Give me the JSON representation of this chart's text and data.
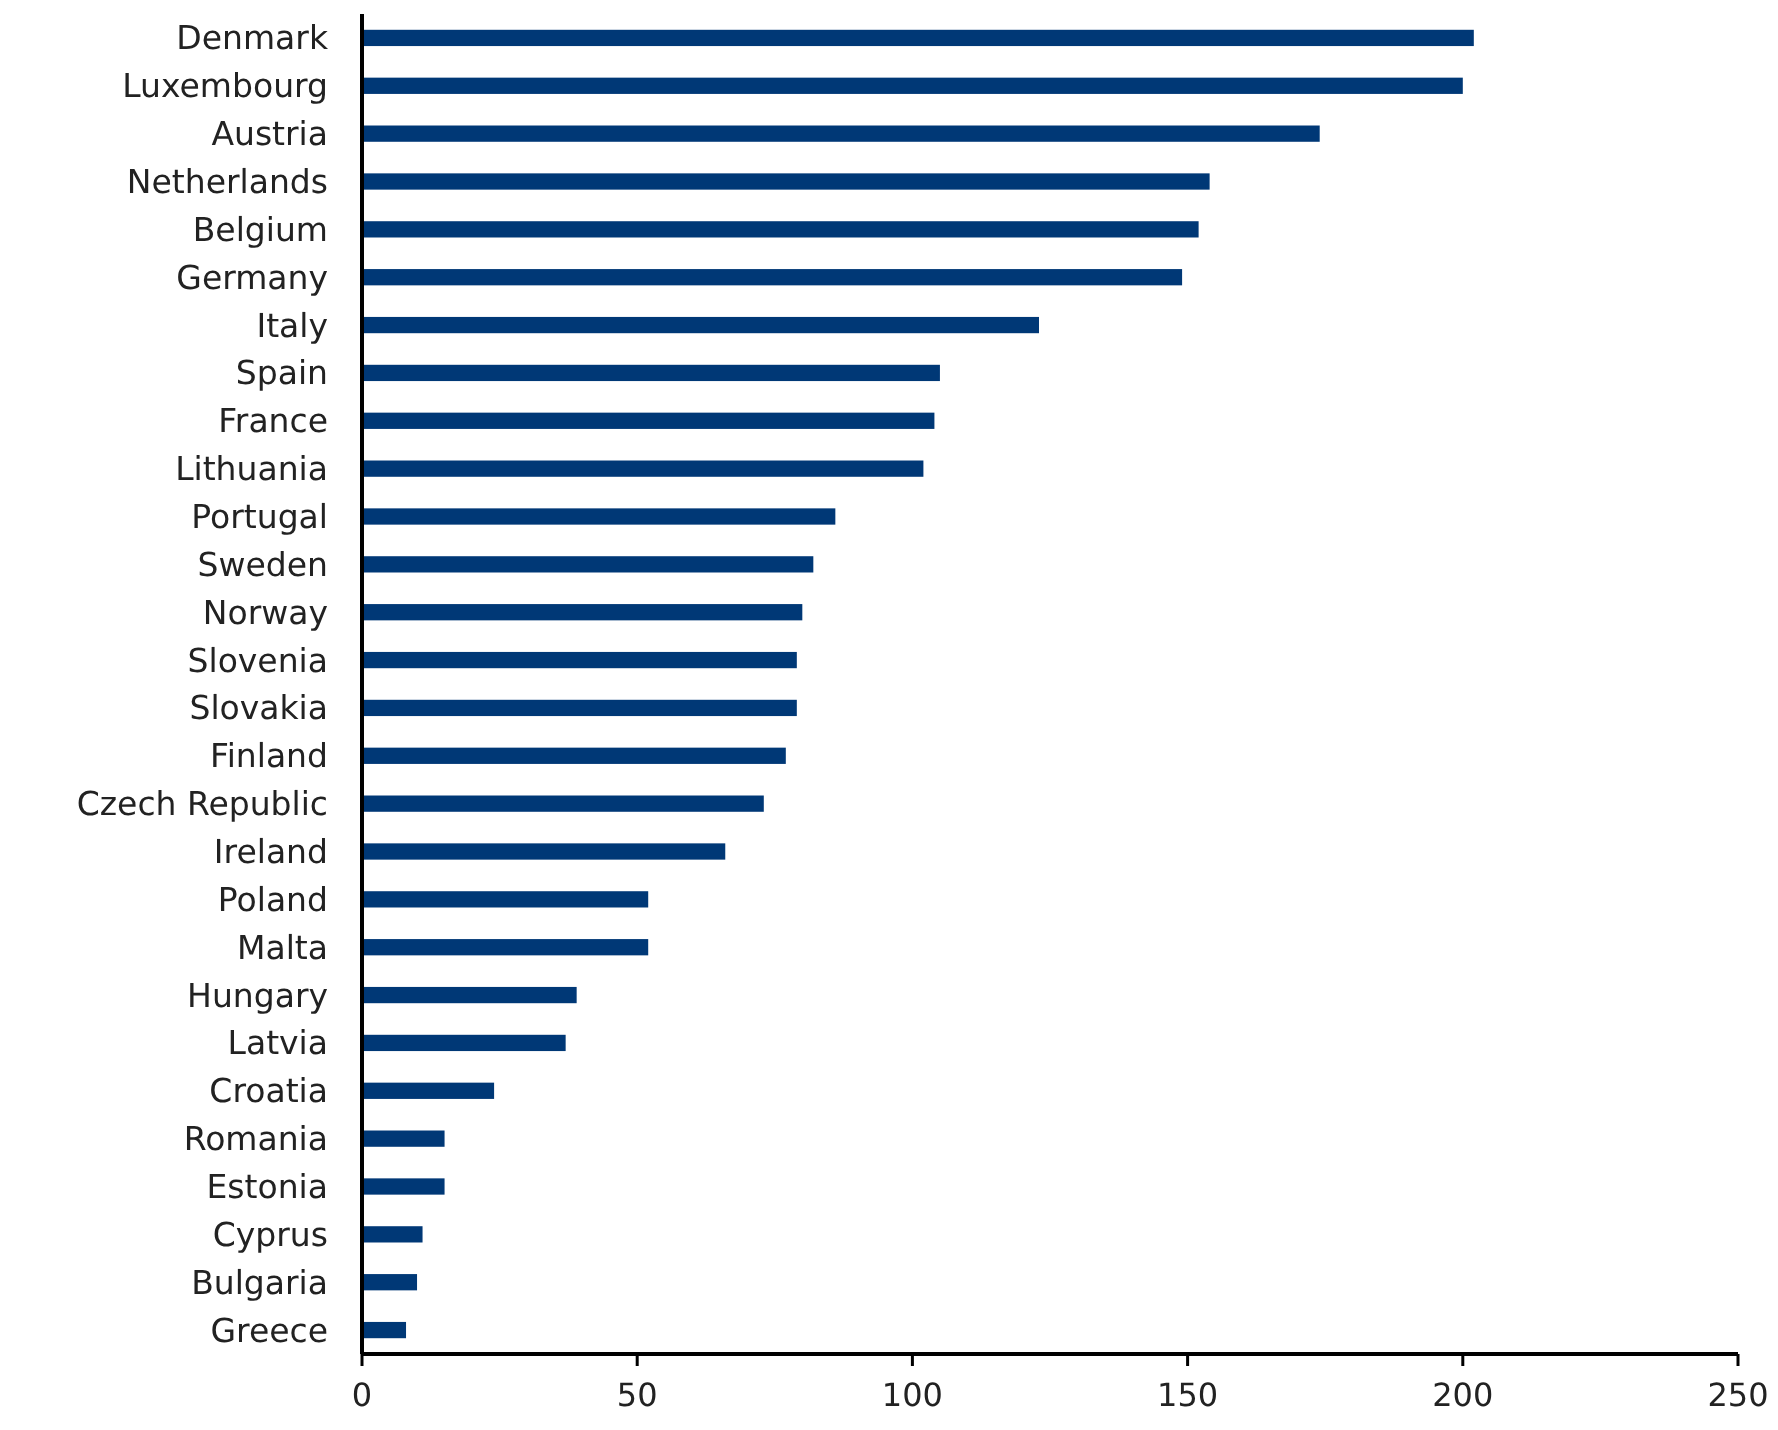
{
  "chart_data": {
    "type": "bar",
    "orientation": "horizontal",
    "categories": [
      "Denmark",
      "Luxembourg",
      "Austria",
      "Netherlands",
      "Belgium",
      "Germany",
      "Italy",
      "Spain",
      "France",
      "Lithuania",
      "Portugal",
      "Sweden",
      "Norway",
      "Slovenia",
      "Slovakia",
      "Finland",
      "Czech Republic",
      "Ireland",
      "Poland",
      "Malta",
      "Hungary",
      "Latvia",
      "Croatia",
      "Romania",
      "Estonia",
      "Cyprus",
      "Bulgaria",
      "Greece"
    ],
    "values": [
      202,
      200,
      174,
      154,
      152,
      149,
      123,
      105,
      104,
      102,
      86,
      82,
      80,
      79,
      79,
      77,
      73,
      66,
      52,
      52,
      39,
      37,
      24,
      15,
      15,
      11,
      10,
      8
    ],
    "color": "#003876",
    "xlim": [
      0,
      250
    ],
    "xticks": [
      0,
      50,
      100,
      150,
      200,
      250
    ],
    "grid": false
  }
}
